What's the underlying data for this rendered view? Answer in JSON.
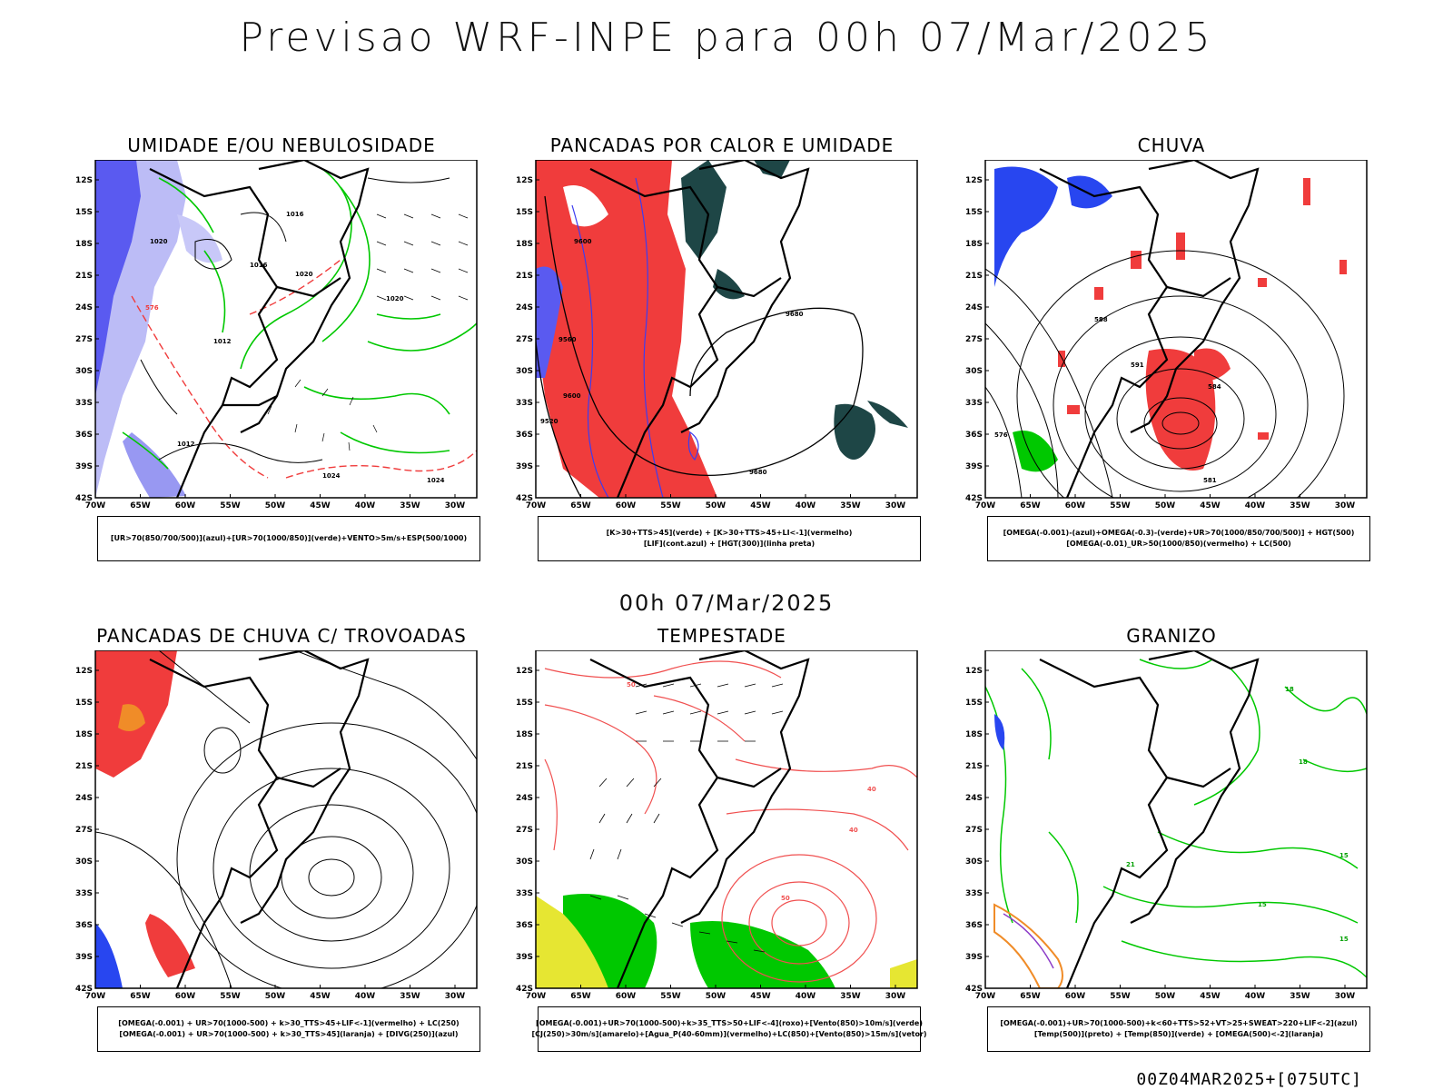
{
  "title": "Previsao WRF-INPE  para 00h 07/Mar/2025",
  "mid_title": "00h 07/Mar/2025",
  "footer": "00Z04MAR2025+[075UTC]",
  "lat_ticks": [
    "12S",
    "15S",
    "18S",
    "21S",
    "24S",
    "27S",
    "30S",
    "33S",
    "36S",
    "39S",
    "42S"
  ],
  "lon_ticks": [
    "70W",
    "65W",
    "60W",
    "55W",
    "50W",
    "45W",
    "40W",
    "35W",
    "30W"
  ],
  "panels": [
    {
      "id": "umidade",
      "title": "UMIDADE E/OU NEBULOSIDADE",
      "legend": [
        "[UR>70(850/700/500)](azul)+[UR>70(1000/850)](verde)+VENTO>5m/s+ESP(500/1000)"
      ],
      "contour_labels": [
        "1016",
        "1020",
        "1012",
        "1024",
        "1016",
        "1020",
        "576",
        "1020",
        "1012",
        "1024"
      ],
      "colors": {
        "humid_high": "#8a8af0",
        "humid_low": "#00c800",
        "thickness": "#f03c3c"
      }
    },
    {
      "id": "pancadas_calor",
      "title": "PANCADAS POR CALOR E UMIDADE",
      "legend": [
        "[K>30+TTS>45](verde) + [K>30+TTS>45+LI<-1](vermelho)",
        "[LIF](cont.azul) + [HGT(300)](linha preta)"
      ],
      "contour_labels": [
        "9600",
        "9680",
        "9560",
        "9520",
        "9600",
        "9680"
      ],
      "colors": {
        "unstable": "#f03c3c",
        "humid": "#1e4646",
        "lif": "#3c3cf0"
      }
    },
    {
      "id": "chuva",
      "title": "CHUVA",
      "legend": [
        "[OMEGA(-0.001)-(azul)+OMEGA(-0.3)-(verde)+UR>70(1000/850/700/500)] + HGT(500)",
        "[OMEGA(-0.01)_UR>50(1000/850)(vermelho) + LC(500)"
      ],
      "contour_labels": [
        "588",
        "584",
        "581",
        "576",
        "591"
      ],
      "colors": {
        "rain": "#f03c3c",
        "omega_blue": "#2846f0",
        "omega_green": "#00c800"
      }
    },
    {
      "id": "pancadas_trovoadas",
      "title": "PANCADAS DE CHUVA C/ TROVOADAS",
      "legend": [
        "[OMEGA(-0.001) + UR>70(1000-500) + k>30_TTS>45+LIF<-1](vermelho) + LC(250)",
        "[OMEGA(-0.001) + UR>70(1000-500) + k>30_TTS>45](laranja) + [DIVG(250)](azul)"
      ],
      "contour_labels": [],
      "colors": {
        "storm": "#f03c3c",
        "orange": "#f08c28",
        "divg": "#2846f0"
      }
    },
    {
      "id": "tempestade",
      "title": "TEMPESTADE",
      "legend": [
        "[OMEGA(-0.001)+UR>70(1000-500)+k>35_TTS>50+LIF<-4](roxo)+[Vento(850)>10m/s](verde)",
        "[CJ(250)>30m/s](amarelo)+[Agua_P(40-60mm)](vermelho)+LC(850)+[Vento(850)>15m/s](vetor)"
      ],
      "contour_labels": [
        "50",
        "40",
        "40",
        "50"
      ],
      "colors": {
        "pw": "#f05050",
        "jet": "#e6e632",
        "wind": "#00c800"
      }
    },
    {
      "id": "granizo",
      "title": "GRANIZO",
      "legend": [
        "[OMEGA(-0.001)+UR>70(1000-500)+k<60+TTS>52+VT>25+SWEAT>220+LIF<-2](azul)",
        "[Temp(500)](preto) + [Temp(850)](verde) + [OMEGA(500)<-2](laranja)"
      ],
      "contour_labels": [
        "18",
        "15",
        "21",
        "15",
        "18",
        "15"
      ],
      "colors": {
        "temp850": "#00c800",
        "omega500": "#f08c28",
        "hail": "#2846f0"
      }
    }
  ]
}
